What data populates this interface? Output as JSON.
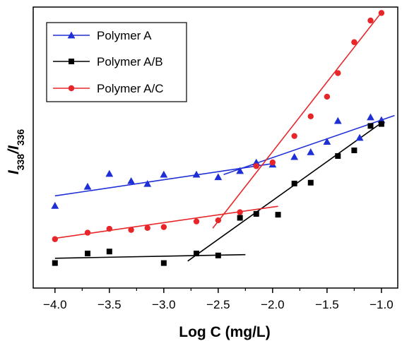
{
  "chart_data": {
    "type": "scatter",
    "xlabel": "Log C (mg/L)",
    "ylabel": {
      "prefix": "I",
      "sub1": "338",
      "slash": "/I",
      "sub2": "336"
    },
    "xlim": [
      -4.2,
      -0.85
    ],
    "ylim": [
      0,
      1
    ],
    "xticks": [
      -4.0,
      -3.5,
      -3.0,
      -2.5,
      -2.0,
      -1.5,
      -1.0
    ],
    "xtick_labels": [
      "−4.0",
      "−3.5",
      "−3.0",
      "−2.5",
      "−2.0",
      "−1.5",
      "−1.0"
    ],
    "y_tick_labels_shown": false,
    "grid": false,
    "legend_position": "top-left",
    "series": [
      {
        "name": "Polymer A",
        "color": "#1f2fd6",
        "marker": "triangle",
        "points": [
          [
            -4.0,
            0.293
          ],
          [
            -3.7,
            0.361
          ],
          [
            -3.5,
            0.407
          ],
          [
            -3.3,
            0.381
          ],
          [
            -3.15,
            0.371
          ],
          [
            -3.0,
            0.404
          ],
          [
            -2.7,
            0.404
          ],
          [
            -2.5,
            0.395
          ],
          [
            -2.3,
            0.417
          ],
          [
            -2.15,
            0.447
          ],
          [
            -2.0,
            0.44
          ],
          [
            -1.8,
            0.467
          ],
          [
            -1.65,
            0.484
          ],
          [
            -1.5,
            0.521
          ],
          [
            -1.4,
            0.595
          ],
          [
            -1.2,
            0.535
          ],
          [
            -1.1,
            0.608
          ],
          [
            -1.0,
            0.598
          ]
        ],
        "fits": [
          {
            "x": [
              -4.0,
              -2.0
            ],
            "y": [
              0.328,
              0.443
            ]
          },
          {
            "x": [
              -2.45,
              -0.88
            ],
            "y": [
              0.404,
              0.614
            ]
          }
        ]
      },
      {
        "name": "Polymer A/B",
        "color": "#000000",
        "marker": "square",
        "points": [
          [
            -4.0,
            0.089
          ],
          [
            -3.7,
            0.123
          ],
          [
            -3.5,
            0.13
          ],
          [
            -3.0,
            0.089
          ],
          [
            -2.7,
            0.123
          ],
          [
            -2.5,
            0.116
          ],
          [
            -2.3,
            0.25
          ],
          [
            -2.15,
            0.264
          ],
          [
            -1.95,
            0.261
          ],
          [
            -1.8,
            0.372
          ],
          [
            -1.65,
            0.375
          ],
          [
            -1.4,
            0.47
          ],
          [
            -1.25,
            0.49
          ],
          [
            -1.1,
            0.577
          ],
          [
            -1.0,
            0.584
          ]
        ],
        "fits": [
          {
            "x": [
              -4.0,
              -2.25
            ],
            "y": [
              0.106,
              0.119
            ]
          },
          {
            "x": [
              -2.78,
              -1.0
            ],
            "y": [
              0.096,
              0.588
            ]
          }
        ]
      },
      {
        "name": "Polymer A/C",
        "color": "#e8262a",
        "marker": "circle",
        "points": [
          [
            -4.0,
            0.174
          ],
          [
            -3.7,
            0.197
          ],
          [
            -3.5,
            0.211
          ],
          [
            -3.3,
            0.207
          ],
          [
            -3.15,
            0.214
          ],
          [
            -3.0,
            0.217
          ],
          [
            -2.7,
            0.237
          ],
          [
            -2.5,
            0.241
          ],
          [
            -2.3,
            0.27
          ],
          [
            -2.15,
            0.434
          ],
          [
            -2.0,
            0.447
          ],
          [
            -1.8,
            0.541
          ],
          [
            -1.65,
            0.611
          ],
          [
            -1.5,
            0.681
          ],
          [
            -1.4,
            0.765
          ],
          [
            -1.25,
            0.875
          ],
          [
            -1.1,
            0.952
          ],
          [
            -1.0,
            0.979
          ]
        ],
        "fits": [
          {
            "x": [
              -4.0,
              -1.95
            ],
            "y": [
              0.177,
              0.291
            ]
          },
          {
            "x": [
              -2.55,
              -1.0
            ],
            "y": [
              0.213,
              0.981
            ]
          }
        ]
      }
    ]
  }
}
